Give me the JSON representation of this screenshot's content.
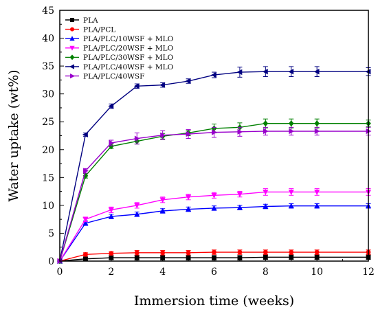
{
  "chart_data": {
    "type": "line",
    "xlabel": "Immersion time (weeks)",
    "ylabel": "Water uptake (wt%)",
    "xlim": [
      0,
      12
    ],
    "ylim": [
      0,
      45
    ],
    "xticks": [
      0,
      2,
      4,
      6,
      8,
      10,
      12
    ],
    "yticks": [
      0,
      5,
      10,
      15,
      20,
      25,
      30,
      35,
      40,
      45
    ],
    "grid": false,
    "legend_position": "top-left",
    "x": [
      0,
      1,
      2,
      3,
      4,
      5,
      6,
      7,
      8,
      9,
      10,
      12
    ],
    "series": [
      {
        "name": "PLA",
        "color": "#000000",
        "marker": "square",
        "values": [
          0,
          0.4,
          0.6,
          0.6,
          0.6,
          0.6,
          0.6,
          0.6,
          0.7,
          0.7,
          0.7,
          0.7
        ],
        "errors": [
          0.1,
          0.3,
          0.3,
          0.4,
          0.4,
          0.4,
          0.4,
          0.4,
          0.4,
          0.4,
          0.4,
          0.4
        ]
      },
      {
        "name": "PLA/PCL",
        "color": "#ff0000",
        "marker": "circle",
        "values": [
          0,
          1.2,
          1.4,
          1.5,
          1.5,
          1.5,
          1.6,
          1.6,
          1.6,
          1.6,
          1.6,
          1.6
        ],
        "errors": [
          0.1,
          0.3,
          0.3,
          0.4,
          0.4,
          0.4,
          0.4,
          0.4,
          0.4,
          0.4,
          0.4,
          0.4
        ]
      },
      {
        "name": "PLA/PLC/10WSF + MLO",
        "color": "#0000ff",
        "marker": "triangle-up",
        "values": [
          0,
          6.8,
          8.0,
          8.4,
          9.0,
          9.3,
          9.5,
          9.6,
          9.8,
          9.9,
          9.9,
          9.9
        ],
        "errors": [
          0.2,
          0.4,
          0.4,
          0.4,
          0.4,
          0.4,
          0.4,
          0.4,
          0.4,
          0.4,
          0.4,
          0.4
        ]
      },
      {
        "name": "PLA/PLC/20WSF + MLO",
        "color": "#ff00ff",
        "marker": "triangle-down",
        "values": [
          0,
          7.5,
          9.2,
          10.0,
          11.0,
          11.5,
          11.8,
          12.0,
          12.4,
          12.4,
          12.4,
          12.4
        ],
        "errors": [
          0.2,
          0.4,
          0.5,
          0.5,
          0.5,
          0.5,
          0.5,
          0.5,
          0.6,
          0.6,
          0.6,
          0.6
        ]
      },
      {
        "name": "PLA/PLC/30WSF + MLO",
        "color": "#008000",
        "marker": "diamond",
        "values": [
          0,
          15.3,
          20.6,
          21.5,
          22.4,
          23.0,
          23.8,
          24.0,
          24.7,
          24.7,
          24.7,
          24.7
        ],
        "errors": [
          0.2,
          0.4,
          0.4,
          0.5,
          0.5,
          0.5,
          0.8,
          0.8,
          0.8,
          0.8,
          0.8,
          0.6
        ]
      },
      {
        "name": "PLA/PLC/40WSF + MLO",
        "color": "#000080",
        "marker": "triangle-left",
        "values": [
          0,
          22.7,
          27.8,
          31.4,
          31.6,
          32.3,
          33.4,
          33.9,
          34.0,
          34.0,
          34.0,
          34.0
        ],
        "errors": [
          0.2,
          0.3,
          0.4,
          0.4,
          0.4,
          0.4,
          0.5,
          0.9,
          0.9,
          0.9,
          0.9,
          0.7
        ]
      },
      {
        "name": "PLA/PLC/40WSF",
        "color": "#9900cc",
        "marker": "triangle-right",
        "values": [
          0,
          16.2,
          21.2,
          22.0,
          22.6,
          22.8,
          23.1,
          23.2,
          23.3,
          23.3,
          23.3,
          23.3
        ],
        "errors": [
          0.2,
          0.4,
          0.5,
          1.0,
          0.8,
          0.8,
          0.9,
          0.8,
          0.7,
          0.7,
          0.7,
          0.7
        ]
      }
    ]
  }
}
